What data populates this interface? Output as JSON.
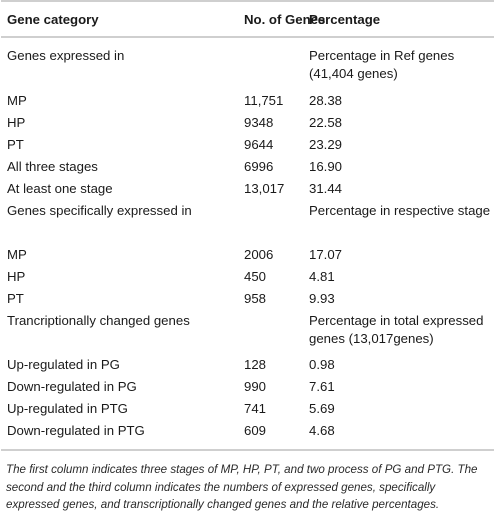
{
  "table": {
    "headers": {
      "category": "Gene category",
      "genes": "No. of Genes",
      "percentage": "Percentage"
    },
    "rows": [
      {
        "category": "Genes expressed in",
        "genes": "",
        "percentage": "Percentage in Ref genes (41,404 genes)"
      },
      {
        "category": "MP",
        "genes": "11,751",
        "percentage": "28.38"
      },
      {
        "category": "HP",
        "genes": "9348",
        "percentage": "22.58"
      },
      {
        "category": "PT",
        "genes": "9644",
        "percentage": "23.29"
      },
      {
        "category": "All three stages",
        "genes": "6996",
        "percentage": "16.90"
      },
      {
        "category": "At least one stage",
        "genes": "13,017",
        "percentage": "31.44"
      },
      {
        "category": "Genes specifically expressed in",
        "genes": "",
        "percentage": "Percentage in respective stage"
      },
      {
        "category": "MP",
        "genes": "2006",
        "percentage": "17.07"
      },
      {
        "category": "HP",
        "genes": "450",
        "percentage": "4.81"
      },
      {
        "category": "PT",
        "genes": "958",
        "percentage": "9.93"
      },
      {
        "category": "Trancriptionally changed genes",
        "genes": "",
        "percentage": "Percentage in total expressed genes (13,017genes)"
      },
      {
        "category": "Up-regulated in PG",
        "genes": "128",
        "percentage": "0.98"
      },
      {
        "category": "Down-regulated in PG",
        "genes": "990",
        "percentage": "7.61"
      },
      {
        "category": "Up-regulated in PTG",
        "genes": "741",
        "percentage": "5.69"
      },
      {
        "category": "Down-regulated in PTG",
        "genes": "609",
        "percentage": "4.68"
      }
    ]
  },
  "footnote": "The first column indicates three stages of MP, HP, PT, and two process of PG and PTG. The second and the third column indicates the numbers of expressed genes, specifically expressed genes, and transcriptionally changed genes and the relative percentages."
}
